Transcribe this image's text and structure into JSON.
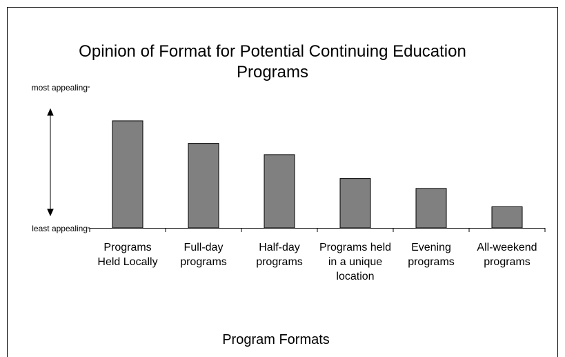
{
  "chart_data": {
    "type": "bar",
    "title": "Opinion of Format for Potential Continuing Education Programs",
    "x_label": "Program Formats",
    "categories": [
      "Programs Held Locally",
      "Full-day programs",
      "Half-day programs",
      "Programs held in a unique location",
      "Evening programs",
      "All-weekend programs"
    ],
    "values": [
      76,
      60,
      52,
      35,
      28,
      15
    ],
    "color": "#808080",
    "ylim": [
      0,
      100
    ],
    "yticks": [
      {
        "value": 0,
        "label": "least appealing"
      },
      {
        "value": 100,
        "label": "most appealing"
      }
    ],
    "grid": false
  }
}
